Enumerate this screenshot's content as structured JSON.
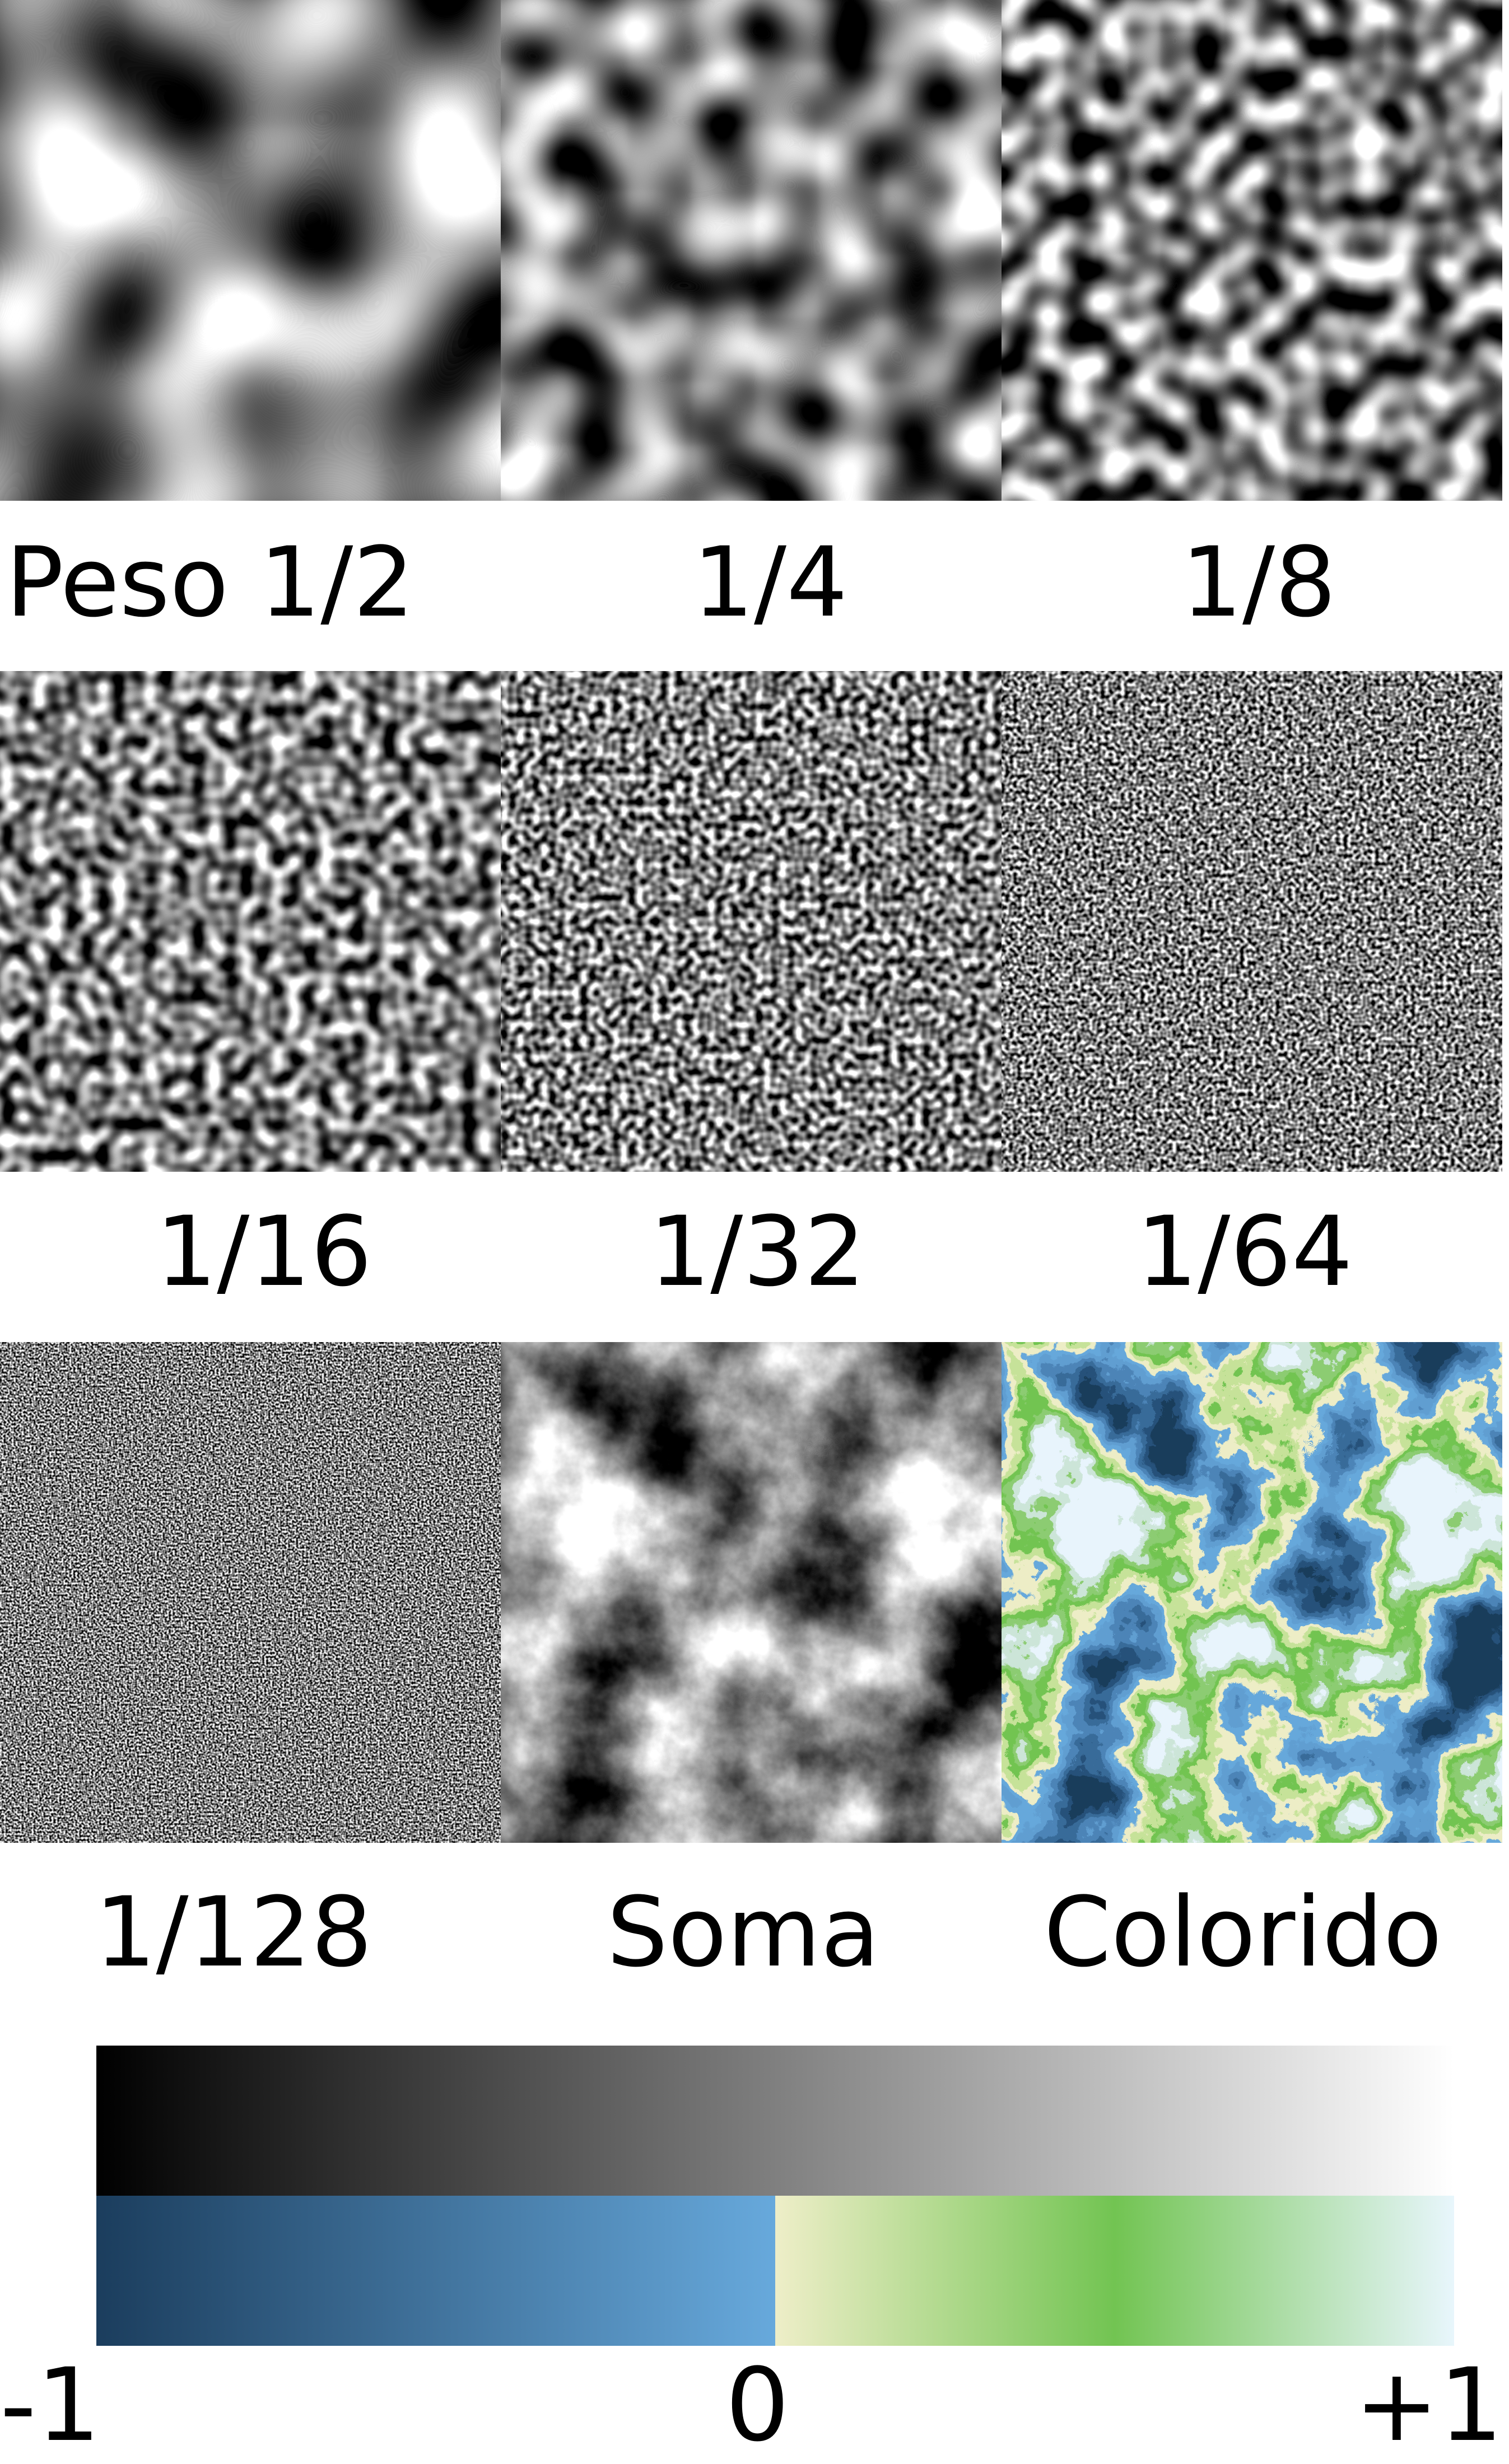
{
  "panels": [
    {
      "label": "Peso 1/2",
      "kind": "gray",
      "octave": 1,
      "seed": 3
    },
    {
      "label": "1/4",
      "kind": "gray",
      "octave": 2,
      "seed": 7
    },
    {
      "label": "1/8",
      "kind": "gray",
      "octave": 3,
      "seed": 11
    },
    {
      "label": "1/16",
      "kind": "gray",
      "octave": 4,
      "seed": 13
    },
    {
      "label": "1/32",
      "kind": "gray",
      "octave": 5,
      "seed": 17
    },
    {
      "label": "1/64",
      "kind": "gray",
      "octave": 6,
      "seed": 19
    },
    {
      "label": "1/128",
      "kind": "gray",
      "octave": 7,
      "seed": 23
    },
    {
      "label": "Soma",
      "kind": "sum",
      "octave": 0,
      "seed": 3
    },
    {
      "label": "Colorido",
      "kind": "colored",
      "octave": 0,
      "seed": 3
    }
  ],
  "scale": {
    "ticks": [
      "-1",
      "0",
      "+1"
    ],
    "gray_stops": [
      "#000000",
      "#ffffff"
    ],
    "color_stops": [
      {
        "value": -1,
        "color": "#1b3d5d"
      },
      {
        "value": 0,
        "color": "#67a9dc"
      },
      {
        "value": 0,
        "color": "#eeeec8"
      },
      {
        "value": 0.5,
        "color": "#72c452"
      },
      {
        "value": 1,
        "color": "#e8f6fc"
      }
    ]
  }
}
